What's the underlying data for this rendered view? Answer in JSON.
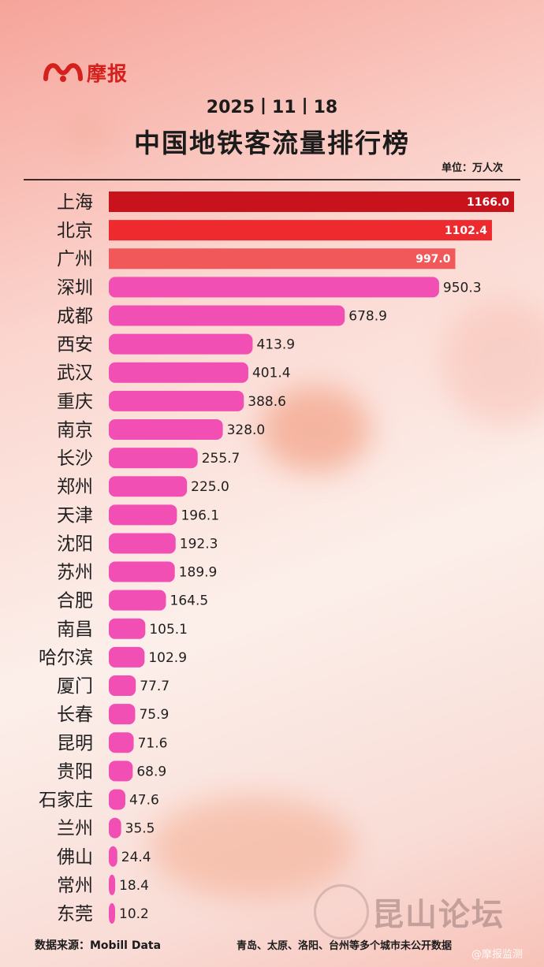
{
  "brand": {
    "name": "摩报",
    "color": "#d4211e"
  },
  "header": {
    "date": "2025丨11丨18",
    "title": "中国地铁客流量排行榜",
    "unit": "单位：万人次"
  },
  "chart_data": {
    "type": "bar",
    "orientation": "horizontal",
    "title": "中国地铁客流量排行榜",
    "unit": "万人次",
    "categories": [
      "上海",
      "北京",
      "广州",
      "深圳",
      "成都",
      "西安",
      "武汉",
      "重庆",
      "南京",
      "长沙",
      "郑州",
      "天津",
      "沈阳",
      "苏州",
      "合肥",
      "南昌",
      "哈尔滨",
      "厦门",
      "长春",
      "昆明",
      "贵阳",
      "石家庄",
      "兰州",
      "佛山",
      "常州",
      "东莞"
    ],
    "values": [
      1166.0,
      1102.4,
      997.0,
      950.3,
      678.9,
      413.9,
      401.4,
      388.6,
      328.0,
      255.7,
      225.0,
      196.1,
      192.3,
      189.9,
      164.5,
      105.1,
      102.9,
      77.7,
      75.9,
      71.6,
      68.9,
      47.6,
      35.5,
      24.4,
      18.4,
      10.2
    ],
    "value_labels": [
      "1166.0",
      "1102.4",
      "997.0",
      "950.3",
      "678.9",
      "413.9",
      "401.4",
      "388.6",
      "328.0",
      "255.7",
      "225.0",
      "196.1",
      "192.3",
      "189.9",
      "164.5",
      "105.1",
      "102.9",
      "77.7",
      "75.9",
      "71.6",
      "68.9",
      "47.6",
      "35.5",
      "24.4",
      "18.4",
      "10.2"
    ],
    "colors": {
      "rank1": "#c8131c",
      "rank2": "#ee2a2f",
      "rank3": "#f0585a",
      "other": "#f24fb4"
    },
    "xlim": [
      0,
      1166
    ]
  },
  "footer": {
    "source": "数据来源：Mobill Data",
    "note": "青岛、太原、洛阳、台州等多个城市未公开数据"
  },
  "watermarks": {
    "forum": "昆山论坛",
    "account": "@摩报监测"
  }
}
